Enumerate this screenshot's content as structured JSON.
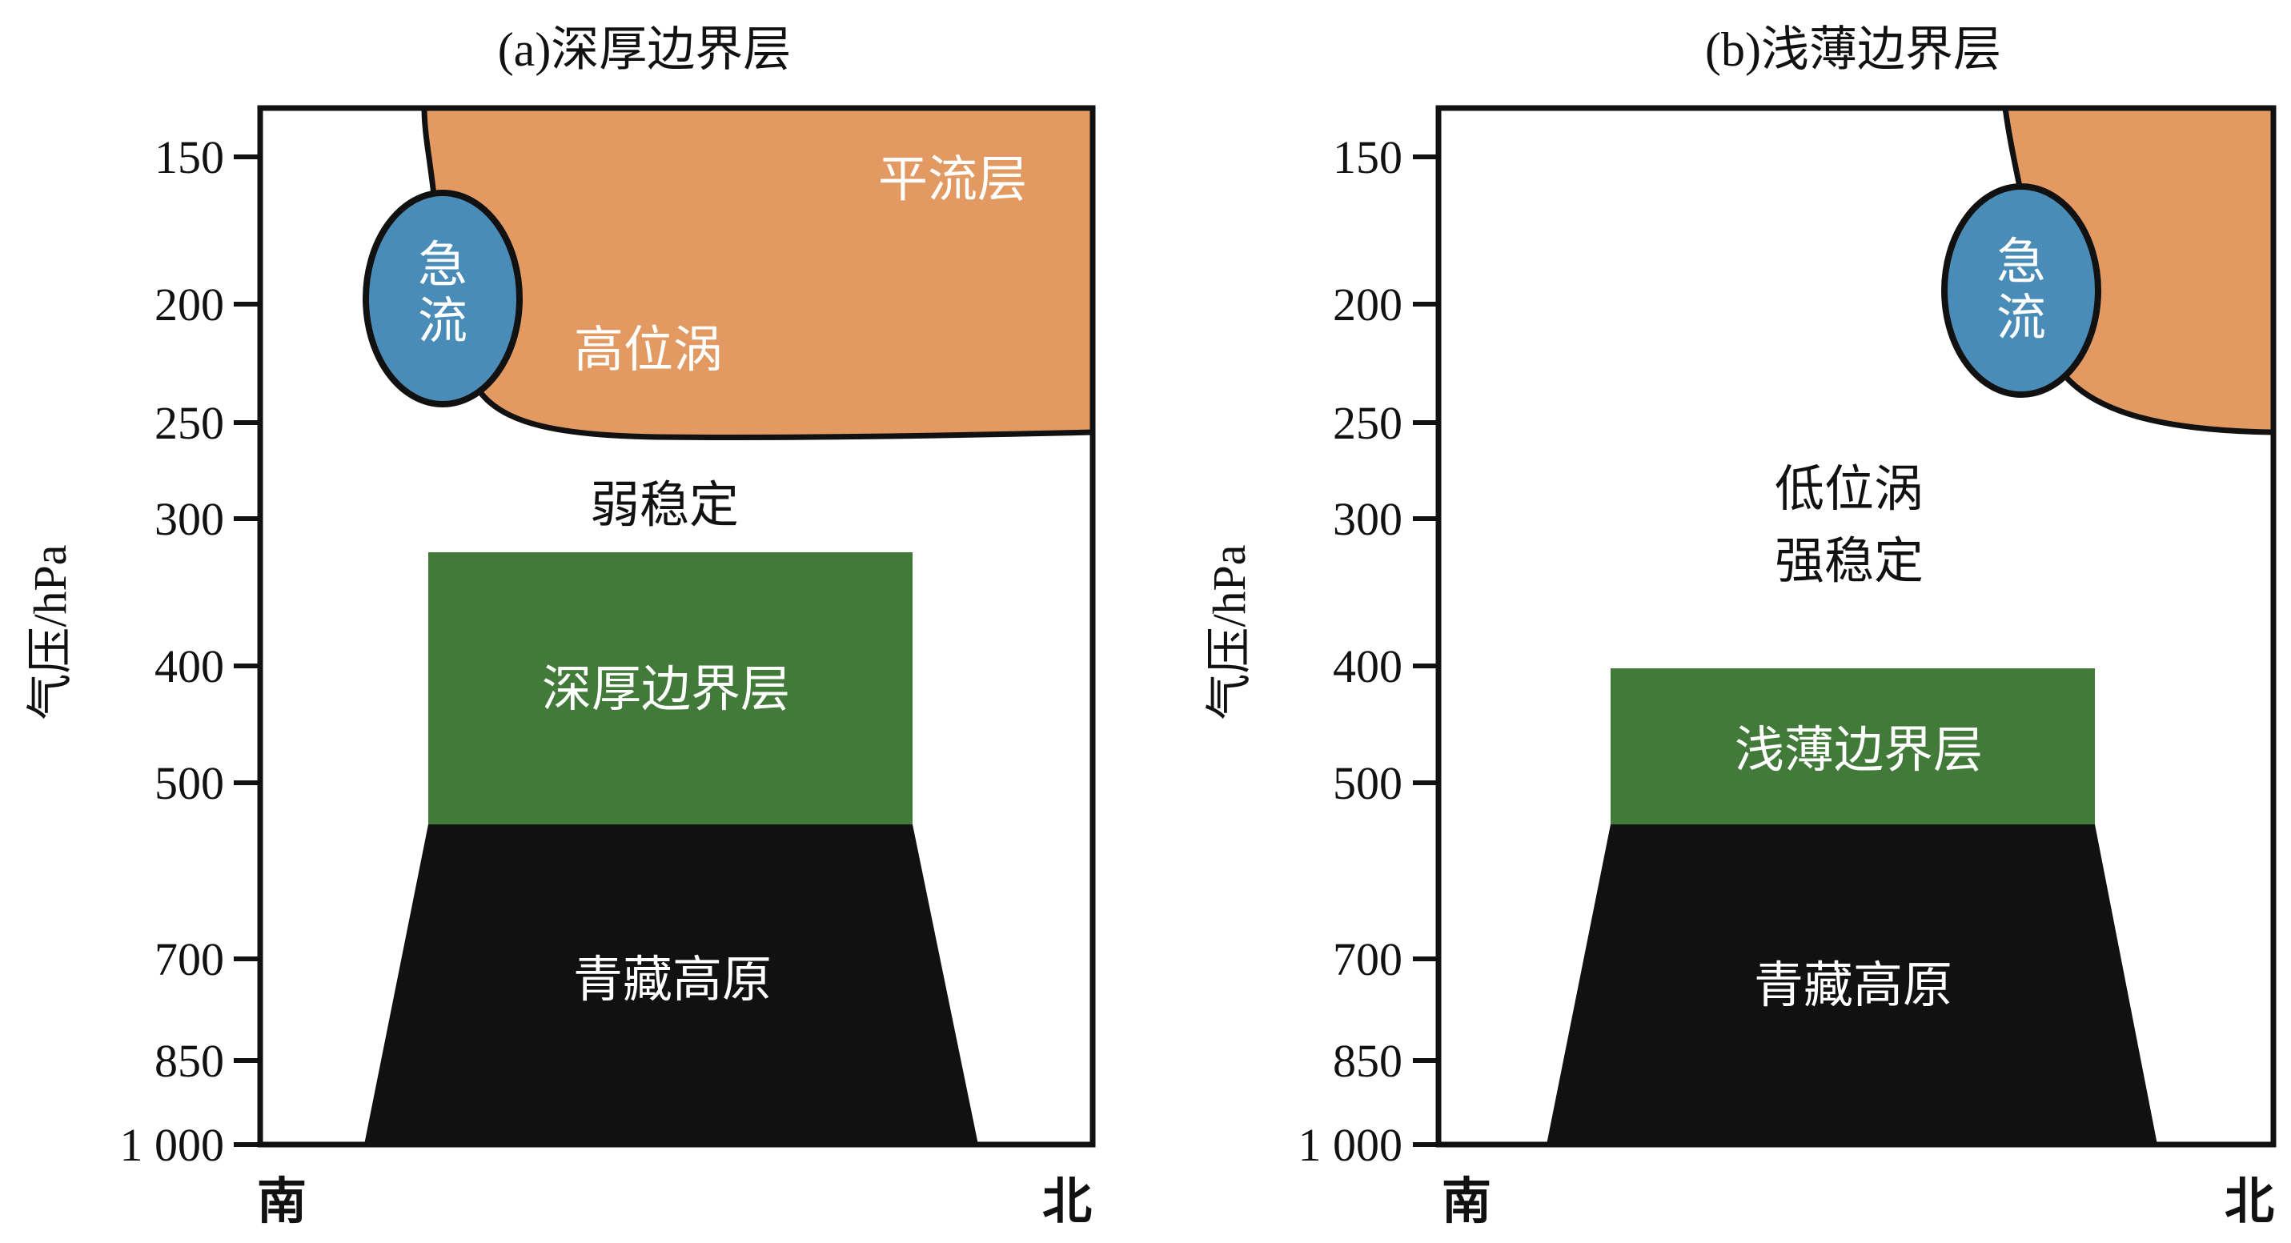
{
  "colors": {
    "stratosphere": "#E29A62",
    "jet": "#4A8CB8",
    "boundary_layer": "#427A3A",
    "plateau": "#111111",
    "outline": "#111111"
  },
  "y_axis": {
    "label": "气压/hPa",
    "ticks": [
      "150",
      "200",
      "250",
      "300",
      "400",
      "500",
      "700",
      "850",
      "1 000"
    ]
  },
  "panels": [
    {
      "title": "(a)深厚边界层",
      "south": "南",
      "north": "北",
      "stratosphere": "平流层",
      "jet_line1": "急",
      "jet_line2": "流",
      "vortex": "高位涡",
      "stability": "弱稳定",
      "boundary_layer": "深厚边界层",
      "plateau": "青藏高原"
    },
    {
      "title": "(b)浅薄边界层",
      "south": "南",
      "north": "北",
      "jet_line1": "急",
      "jet_line2": "流",
      "vortex": "低位涡",
      "stability": "强稳定",
      "boundary_layer": "浅薄边界层",
      "plateau": "青藏高原"
    }
  ]
}
